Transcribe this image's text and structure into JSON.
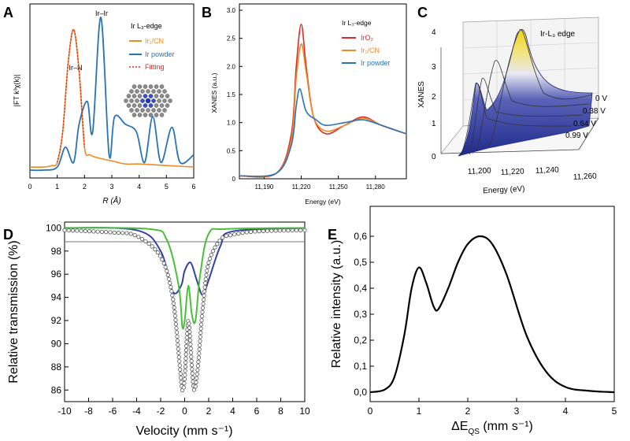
{
  "panels": {
    "A": {
      "letter": "A",
      "ylabel": "|FT k³χ(k)|",
      "xlabel": "R (Å)",
      "title": "Ir L₃-edge",
      "peak_labels": [
        "Ir–N",
        "Ir–Ir"
      ],
      "legend": [
        "Ir₁/CN",
        "Ir powder",
        "Fitting"
      ],
      "x_ticks": [
        "0",
        "1",
        "2",
        "3",
        "4",
        "5",
        "6"
      ],
      "colors": {
        "ir1cn": "#f08a24",
        "irpowder": "#2a73b5",
        "fitting": "#d92b2b"
      }
    },
    "B": {
      "letter": "B",
      "ylabel": "XANES (a.u.)",
      "xlabel": "Energy (eV)",
      "title": "Ir L₃-edge",
      "legend": [
        "IrO₂",
        "Ir₁/CN",
        "Ir powder"
      ],
      "x_ticks": [
        "11,190",
        "11,220",
        "11,250",
        "11,280"
      ],
      "y_ticks": [
        "0",
        "0.5",
        "1.0",
        "1.5",
        "2.0",
        "2.5",
        "3.0"
      ],
      "colors": {
        "iro2": "#d92b2b",
        "ir1cn": "#f08a24",
        "irpowder": "#2a73b5"
      }
    },
    "C": {
      "letter": "C",
      "ylabel": "XANES",
      "xlabel": "Energy (eV)",
      "title": "Ir-L₃ edge",
      "voltages": [
        "0 V",
        "0.38 V",
        "0.64 V",
        "0.99 V"
      ],
      "x_ticks": [
        "11,200",
        "11,220",
        "11,240",
        "11,260"
      ],
      "y_ticks": [
        "0",
        "1",
        "2",
        "3",
        "4"
      ]
    },
    "D": {
      "letter": "D",
      "ylabel": "Relative transmission (%)",
      "xlabel": "Velocity (mm s⁻¹)",
      "x_ticks": [
        "-10",
        "-8",
        "-6",
        "-4",
        "-2",
        "0",
        "2",
        "4",
        "6",
        "8",
        "10"
      ],
      "y_ticks": [
        "86",
        "88",
        "90",
        "92",
        "94",
        "96",
        "98",
        "100"
      ]
    },
    "E": {
      "letter": "E",
      "ylabel": "Relative intensity (a.u.)",
      "xlabel": "ΔE",
      "xlabel_sub": "QS",
      "xlabel_unit": " (mm s⁻¹)",
      "x_ticks": [
        "0",
        "1",
        "2",
        "3",
        "4",
        "5"
      ],
      "y_ticks": [
        "0,0",
        "0,1",
        "0,2",
        "0,3",
        "0,4",
        "0,5",
        "0,6"
      ]
    }
  },
  "chart_data": [
    {
      "type": "line",
      "panel": "A",
      "xlabel": "R (Å)",
      "ylabel": "|FT k³χ(k)|",
      "xlim": [
        0,
        6
      ],
      "series": [
        {
          "name": "Ir₁/CN",
          "x": [
            0.0,
            0.5,
            0.8,
            1.0,
            1.2,
            1.4,
            1.6,
            1.8,
            2.0,
            2.2,
            2.5,
            3.0,
            3.5,
            4.0,
            5.0,
            6.0
          ],
          "y": [
            0.02,
            0.02,
            0.03,
            0.05,
            0.25,
            0.7,
            0.92,
            0.65,
            0.15,
            0.1,
            0.08,
            0.06,
            0.04,
            0.04,
            0.03,
            0.02
          ]
        },
        {
          "name": "Ir powder",
          "x": [
            0.0,
            0.5,
            1.0,
            1.3,
            1.6,
            1.8,
            2.1,
            2.3,
            2.6,
            2.9,
            3.1,
            3.5,
            3.9,
            4.2,
            4.5,
            4.8,
            5.2,
            5.5,
            6.0
          ],
          "y": [
            0.0,
            0.0,
            0.02,
            0.15,
            0.05,
            0.3,
            0.45,
            0.25,
            1.0,
            0.1,
            0.35,
            0.3,
            0.25,
            0.05,
            0.35,
            0.05,
            0.28,
            0.05,
            0.1
          ]
        },
        {
          "name": "Fitting",
          "x": [
            1.0,
            1.2,
            1.4,
            1.6,
            1.8,
            2.0
          ],
          "y": [
            0.05,
            0.25,
            0.7,
            0.92,
            0.65,
            0.15
          ]
        }
      ]
    },
    {
      "type": "line",
      "panel": "B",
      "xlabel": "Energy (eV)",
      "ylabel": "XANES (a.u.)",
      "xlim": [
        11170,
        11305
      ],
      "ylim": [
        0,
        3.0
      ],
      "series": [
        {
          "name": "IrO₂",
          "x": [
            11170,
            11200,
            11212,
            11216,
            11220,
            11224,
            11230,
            11240,
            11255,
            11270,
            11285,
            11305
          ],
          "y": [
            0.05,
            0.1,
            0.8,
            2.0,
            2.75,
            2.0,
            1.1,
            0.8,
            0.95,
            1.1,
            0.95,
            0.8
          ]
        },
        {
          "name": "Ir₁/CN",
          "x": [
            11170,
            11200,
            11212,
            11216,
            11220,
            11224,
            11230,
            11240,
            11255,
            11270,
            11285,
            11305
          ],
          "y": [
            0.05,
            0.1,
            0.7,
            1.8,
            2.4,
            1.9,
            1.1,
            0.85,
            0.95,
            1.08,
            0.95,
            0.8
          ]
        },
        {
          "name": "Ir powder",
          "x": [
            11170,
            11200,
            11212,
            11216,
            11219,
            11224,
            11232,
            11240,
            11255,
            11270,
            11285,
            11305
          ],
          "y": [
            0.05,
            0.1,
            0.6,
            1.3,
            1.6,
            1.2,
            1.05,
            0.95,
            1.0,
            1.05,
            0.95,
            0.8
          ]
        }
      ]
    },
    {
      "type": "area",
      "panel": "C",
      "xlabel": "Energy (eV)",
      "ylabel": "XANES",
      "ylim": [
        0,
        4
      ],
      "series": [
        {
          "name": "0 V",
          "peak": 3.9
        },
        {
          "name": "0.38 V",
          "peak": 3.0
        },
        {
          "name": "0.64 V",
          "peak": 2.5
        },
        {
          "name": "0.99 V",
          "peak": 2.2
        }
      ]
    },
    {
      "type": "scatter",
      "panel": "D",
      "xlabel": "Velocity (mm s⁻¹)",
      "ylabel": "Relative transmission (%)",
      "xlim": [
        -10,
        10
      ],
      "ylim": [
        85,
        100.5
      ],
      "series": [
        {
          "name": "data",
          "x": [
            -10,
            -6,
            -4,
            -2,
            -1,
            -0.4,
            -0.2,
            0,
            0.3,
            0.6,
            0.8,
            1.1,
            1.5,
            2,
            3,
            4,
            6,
            10
          ],
          "y": [
            99.8,
            99.6,
            99.3,
            97.5,
            94,
            88,
            86,
            87,
            92,
            88,
            86,
            88,
            93,
            97,
            99,
            99.4,
            99.7,
            99.8
          ]
        },
        {
          "name": "blue",
          "x": [
            -10,
            -4,
            -2,
            -1,
            -0.3,
            0,
            0.5,
            1,
            1.5,
            2,
            3,
            4,
            10
          ],
          "y": [
            100,
            99.8,
            98,
            94.5,
            95,
            96.3,
            97,
            95.5,
            94.2,
            95.5,
            98.5,
            99.7,
            100
          ]
        },
        {
          "name": "green",
          "x": [
            -10,
            -3,
            -1.5,
            -0.5,
            -0.2,
            0,
            0.3,
            0.6,
            0.9,
            1.3,
            2,
            3.5,
            10
          ],
          "y": [
            100,
            99.9,
            99,
            95,
            91.5,
            92,
            95,
            92.5,
            92,
            96,
            99.5,
            99.9,
            100
          ]
        },
        {
          "name": "grey",
          "x": [
            -10,
            10
          ],
          "y": [
            98.8,
            98.8
          ]
        }
      ]
    },
    {
      "type": "line",
      "panel": "E",
      "xlabel": "ΔE QS (mm s⁻¹)",
      "ylabel": "Relative intensity (a.u.)",
      "xlim": [
        0,
        5
      ],
      "ylim": [
        0,
        0.6
      ],
      "x": [
        0,
        0.3,
        0.5,
        0.7,
        0.85,
        1.0,
        1.15,
        1.3,
        1.4,
        1.6,
        1.8,
        2.0,
        2.25,
        2.5,
        2.8,
        3.2,
        3.6,
        4.0,
        4.5,
        5.0
      ],
      "values": [
        0.0,
        0.01,
        0.06,
        0.22,
        0.4,
        0.48,
        0.42,
        0.33,
        0.32,
        0.4,
        0.5,
        0.57,
        0.6,
        0.57,
        0.45,
        0.22,
        0.08,
        0.02,
        0.005,
        0.0
      ]
    }
  ]
}
